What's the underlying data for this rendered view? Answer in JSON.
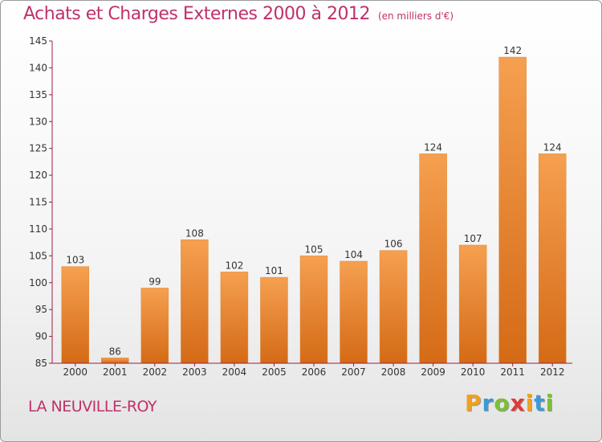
{
  "title": "Achats et Charges Externes 2000 à 2012",
  "subtitle": "(en milliers d'€)",
  "place": "LA NEUVILLE-ROY",
  "logo": {
    "letters": [
      "P",
      "r",
      "o",
      "x",
      "i",
      "t",
      "i"
    ],
    "colors": [
      "#f0a020",
      "#3a9ad9",
      "#7bbf3a",
      "#e03a3a",
      "#f0a020",
      "#3a9ad9",
      "#7bbf3a"
    ]
  },
  "chart_data": {
    "type": "bar",
    "categories": [
      "2000",
      "2001",
      "2002",
      "2003",
      "2004",
      "2005",
      "2006",
      "2007",
      "2008",
      "2009",
      "2010",
      "2011",
      "2012"
    ],
    "values": [
      103,
      86,
      99,
      108,
      102,
      101,
      105,
      104,
      106,
      124,
      107,
      142,
      124
    ],
    "data_labels": [
      "103",
      "86",
      "99",
      "108",
      "102",
      "101",
      "105",
      "104",
      "106",
      "124",
      "107",
      "142",
      "124"
    ],
    "ylim": [
      85,
      145
    ],
    "yticks": [
      "85",
      "90",
      "95",
      "100",
      "105",
      "110",
      "115",
      "120",
      "125",
      "130",
      "135",
      "140",
      "145"
    ],
    "bar_color_top": "#f5a050",
    "bar_color_bottom": "#d46a16",
    "axis_color": "#9b1e4a",
    "grid": false
  }
}
